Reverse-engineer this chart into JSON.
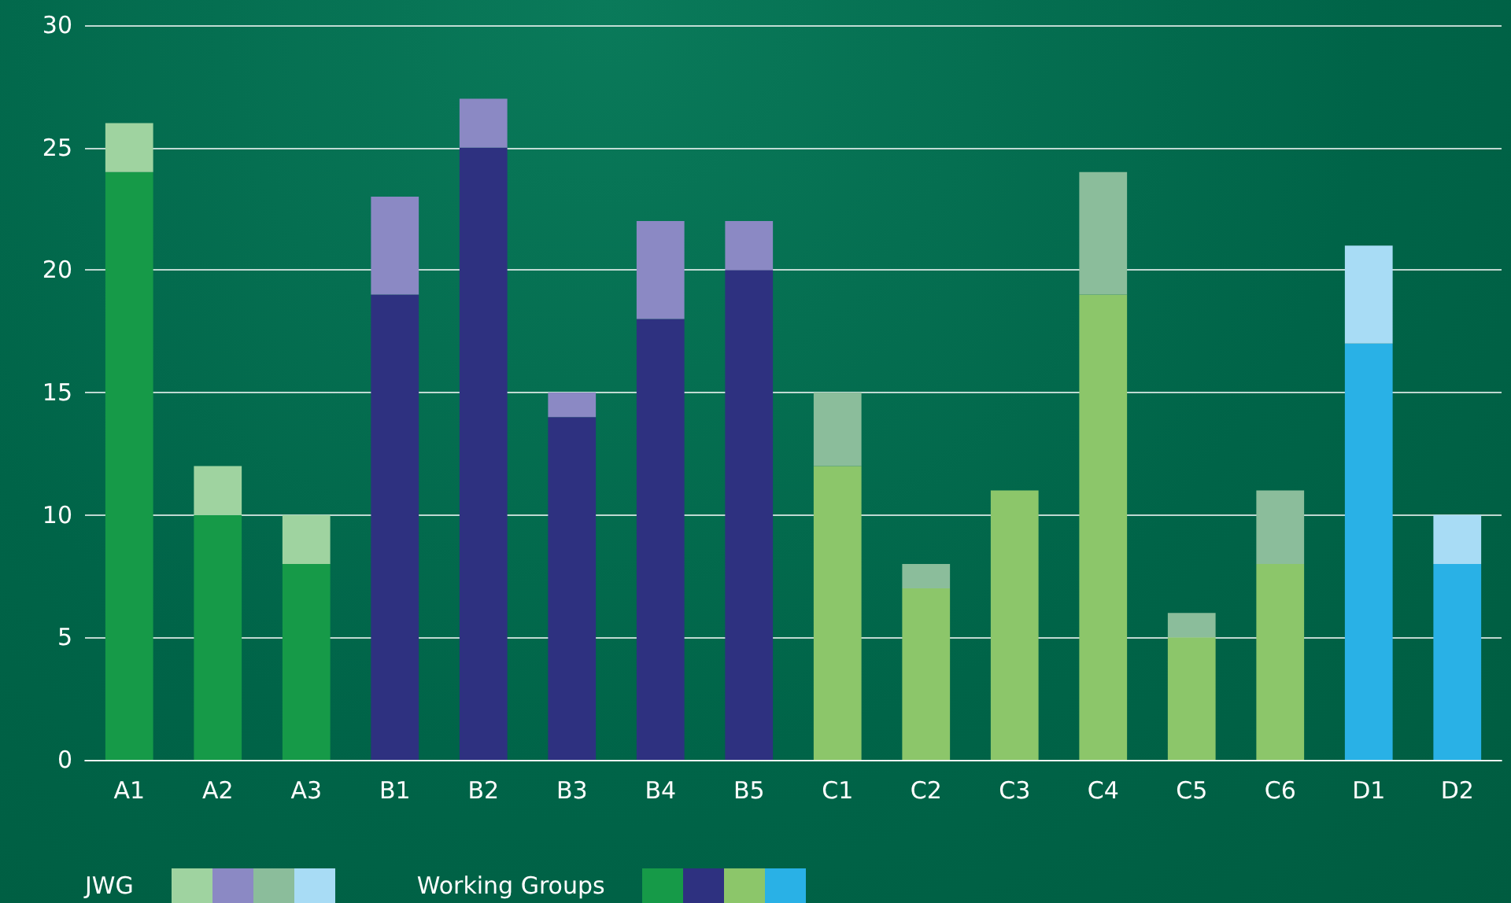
{
  "chart_data": {
    "type": "bar",
    "stacked": true,
    "categories": [
      "A1",
      "A2",
      "A3",
      "B1",
      "B2",
      "B3",
      "B4",
      "B5",
      "C1",
      "C2",
      "C3",
      "C4",
      "C5",
      "C6",
      "D1",
      "D2"
    ],
    "series": [
      {
        "name": "Working Groups",
        "colors": [
          "#169a48",
          "#169a48",
          "#169a48",
          "#2e3180",
          "#2e3180",
          "#2e3180",
          "#2e3180",
          "#2e3180",
          "#8cc66a",
          "#8cc66a",
          "#8cc66a",
          "#8cc66a",
          "#8cc66a",
          "#8cc66a",
          "#29b1e6",
          "#29b1e6"
        ],
        "values": [
          24,
          10,
          8,
          19,
          25,
          14,
          18,
          20,
          12,
          7,
          11,
          19,
          5,
          8,
          17,
          8
        ]
      },
      {
        "name": "JWG",
        "colors": [
          "#9fd3a0",
          "#9fd3a0",
          "#9fd3a0",
          "#8b89c4",
          "#8b89c4",
          "#8b89c4",
          "#8b89c4",
          "#8b89c4",
          "#8bbd9b",
          "#8bbd9b",
          "#8bbd9b",
          "#8bbd9b",
          "#8bbd9b",
          "#8bbd9b",
          "#a8dcf5",
          "#a8dcf5"
        ],
        "values": [
          2,
          2,
          2,
          4,
          2,
          1,
          4,
          2,
          3,
          1,
          0,
          5,
          1,
          3,
          4,
          2
        ]
      }
    ],
    "ylim": [
      0,
      30
    ],
    "yticks": [
      0,
      5,
      10,
      15,
      20,
      25,
      30
    ],
    "grid": "y",
    "legend": "bottom left"
  }
}
